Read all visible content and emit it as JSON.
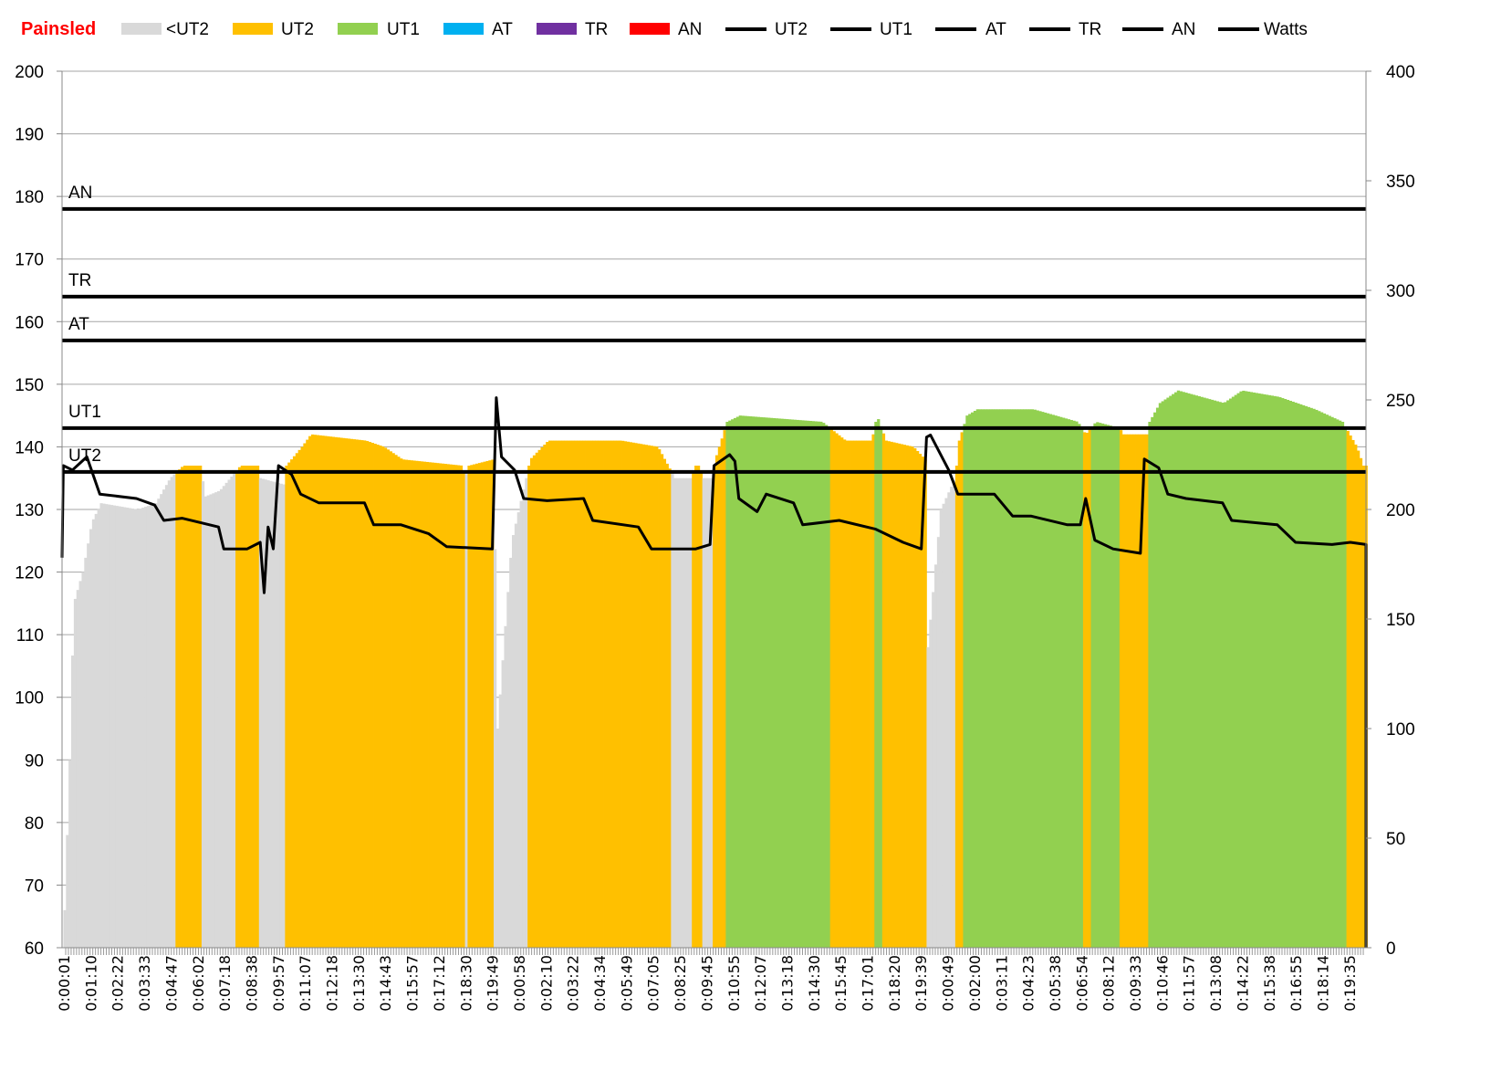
{
  "chart_data": {
    "type": "bar",
    "title": "Painsled",
    "title_color": "#ff0000",
    "legend": [
      {
        "name": "<UT2",
        "kind": "area",
        "color": "#d9d9d9"
      },
      {
        "name": "UT2",
        "kind": "area",
        "color": "#ffc000"
      },
      {
        "name": "UT1",
        "kind": "area",
        "color": "#92d050"
      },
      {
        "name": "AT",
        "kind": "area",
        "color": "#00b0f0"
      },
      {
        "name": "TR",
        "kind": "area",
        "color": "#7030a0"
      },
      {
        "name": "AN",
        "kind": "area",
        "color": "#ff0000"
      },
      {
        "name": "UT2",
        "kind": "line",
        "color": "#000000"
      },
      {
        "name": "UT1",
        "kind": "line",
        "color": "#000000"
      },
      {
        "name": "AT",
        "kind": "line",
        "color": "#000000"
      },
      {
        "name": "TR",
        "kind": "line",
        "color": "#000000"
      },
      {
        "name": "AN",
        "kind": "line",
        "color": "#000000"
      },
      {
        "name": "Watts",
        "kind": "line",
        "color": "#000000"
      }
    ],
    "legend_position": "top",
    "y_left": {
      "min": 60,
      "max": 200,
      "step": 10,
      "ticks": [
        "60",
        "70",
        "80",
        "90",
        "100",
        "110",
        "120",
        "130",
        "140",
        "150",
        "160",
        "170",
        "180",
        "190",
        "200"
      ]
    },
    "y_right": {
      "min": 0,
      "max": 400,
      "step": 50,
      "ticks": [
        "0",
        "50",
        "100",
        "150",
        "200",
        "250",
        "300",
        "350",
        "400"
      ]
    },
    "grid": true,
    "x_samples": 1000,
    "x_tick_labels": [
      "0:00:01",
      "0:01:10",
      "0:02:22",
      "0:03:33",
      "0:04:47",
      "0:06:02",
      "0:07:18",
      "0:08:38",
      "0:09:57",
      "0:11:07",
      "0:12:18",
      "0:13:30",
      "0:14:43",
      "0:15:57",
      "0:17:12",
      "0:18:30",
      "0:19:49",
      "0:00:58",
      "0:02:10",
      "0:03:22",
      "0:04:34",
      "0:05:49",
      "0:07:05",
      "0:08:25",
      "0:09:45",
      "0:10:55",
      "0:12:07",
      "0:13:18",
      "0:14:30",
      "0:15:45",
      "0:17:01",
      "0:18:20",
      "0:19:39",
      "0:00:49",
      "0:02:00",
      "0:03:11",
      "0:04:23",
      "0:05:38",
      "0:06:54",
      "0:08:12",
      "0:09:33",
      "0:10:46",
      "0:11:57",
      "0:13:08",
      "0:14:22",
      "0:15:38",
      "0:16:55",
      "0:18:14",
      "0:19:35"
    ],
    "zone_lines": [
      {
        "name": "AN",
        "value": 178
      },
      {
        "name": "TR",
        "value": 164
      },
      {
        "name": "AT",
        "value": 157
      },
      {
        "name": "UT1",
        "value": 143
      },
      {
        "name": "UT2",
        "value": 136
      }
    ],
    "heart_rate": [
      [
        1,
        66
      ],
      [
        5,
        90
      ],
      [
        8,
        115
      ],
      [
        15,
        120
      ],
      [
        22,
        128
      ],
      [
        29,
        131
      ],
      [
        57,
        130
      ],
      [
        71,
        131
      ],
      [
        82,
        135
      ],
      [
        92,
        137
      ],
      [
        106,
        137
      ],
      [
        108,
        132
      ],
      [
        120,
        133
      ],
      [
        136,
        137
      ],
      [
        150,
        137
      ],
      [
        151,
        135
      ],
      [
        169,
        134
      ],
      [
        171,
        137
      ],
      [
        183,
        140
      ],
      [
        190,
        142
      ],
      [
        232,
        141
      ],
      [
        246,
        140
      ],
      [
        260,
        138
      ],
      [
        306,
        137
      ],
      [
        308,
        135
      ],
      [
        311,
        137
      ],
      [
        330,
        138
      ],
      [
        333,
        95
      ],
      [
        344,
        125
      ],
      [
        355,
        135
      ],
      [
        358,
        138
      ],
      [
        372,
        141
      ],
      [
        428,
        141
      ],
      [
        456,
        140
      ],
      [
        469,
        135
      ],
      [
        482,
        135
      ],
      [
        484,
        137
      ],
      [
        488,
        137
      ],
      [
        490,
        135
      ],
      [
        497,
        135
      ],
      [
        500,
        138
      ],
      [
        509,
        144
      ],
      [
        519,
        145
      ],
      [
        582,
        144
      ],
      [
        600,
        141
      ],
      [
        620,
        141
      ],
      [
        624,
        145
      ],
      [
        631,
        141
      ],
      [
        652,
        140
      ],
      [
        661,
        138
      ],
      [
        663,
        108
      ],
      [
        673,
        130
      ],
      [
        684,
        135
      ],
      [
        687,
        141
      ],
      [
        693,
        145
      ],
      [
        701,
        146
      ],
      [
        744,
        146
      ],
      [
        778,
        144
      ],
      [
        784,
        142
      ],
      [
        792,
        144
      ],
      [
        810,
        143
      ],
      [
        813,
        142
      ],
      [
        831,
        142
      ],
      [
        833,
        144
      ],
      [
        841,
        147
      ],
      [
        855,
        149
      ],
      [
        890,
        147
      ],
      [
        904,
        149
      ],
      [
        932,
        148
      ],
      [
        960,
        146
      ],
      [
        981,
        144
      ],
      [
        992,
        140
      ],
      [
        997,
        137
      ],
      [
        1000,
        137
      ]
    ],
    "watts": [
      [
        0,
        178
      ],
      [
        1,
        220
      ],
      [
        8,
        218
      ],
      [
        19,
        224
      ],
      [
        29,
        207
      ],
      [
        57,
        205
      ],
      [
        71,
        202
      ],
      [
        78,
        195
      ],
      [
        92,
        196
      ],
      [
        120,
        192
      ],
      [
        124,
        182
      ],
      [
        142,
        182
      ],
      [
        152,
        185
      ],
      [
        155,
        162
      ],
      [
        158,
        192
      ],
      [
        162,
        182
      ],
      [
        166,
        220
      ],
      [
        176,
        216
      ],
      [
        183,
        207
      ],
      [
        197,
        203
      ],
      [
        232,
        203
      ],
      [
        239,
        193
      ],
      [
        260,
        193
      ],
      [
        281,
        189
      ],
      [
        295,
        183
      ],
      [
        330,
        182
      ],
      [
        333,
        251
      ],
      [
        337,
        224
      ],
      [
        347,
        218
      ],
      [
        354,
        205
      ],
      [
        372,
        204
      ],
      [
        400,
        205
      ],
      [
        407,
        195
      ],
      [
        442,
        192
      ],
      [
        452,
        182
      ],
      [
        486,
        182
      ],
      [
        497,
        184
      ],
      [
        500,
        220
      ],
      [
        512,
        225
      ],
      [
        516,
        222
      ],
      [
        519,
        205
      ],
      [
        533,
        199
      ],
      [
        540,
        207
      ],
      [
        561,
        203
      ],
      [
        568,
        193
      ],
      [
        596,
        195
      ],
      [
        624,
        191
      ],
      [
        645,
        185
      ],
      [
        659,
        182
      ],
      [
        663,
        233
      ],
      [
        666,
        234
      ],
      [
        680,
        218
      ],
      [
        687,
        207
      ],
      [
        715,
        207
      ],
      [
        729,
        197
      ],
      [
        743,
        197
      ],
      [
        771,
        193
      ],
      [
        781,
        193
      ],
      [
        785,
        205
      ],
      [
        792,
        186
      ],
      [
        806,
        182
      ],
      [
        827,
        180
      ],
      [
        830,
        223
      ],
      [
        841,
        219
      ],
      [
        848,
        207
      ],
      [
        862,
        205
      ],
      [
        890,
        203
      ],
      [
        897,
        195
      ],
      [
        932,
        193
      ],
      [
        946,
        185
      ],
      [
        974,
        184
      ],
      [
        988,
        185
      ],
      [
        1000,
        184
      ],
      [
        1000,
        0
      ]
    ]
  }
}
